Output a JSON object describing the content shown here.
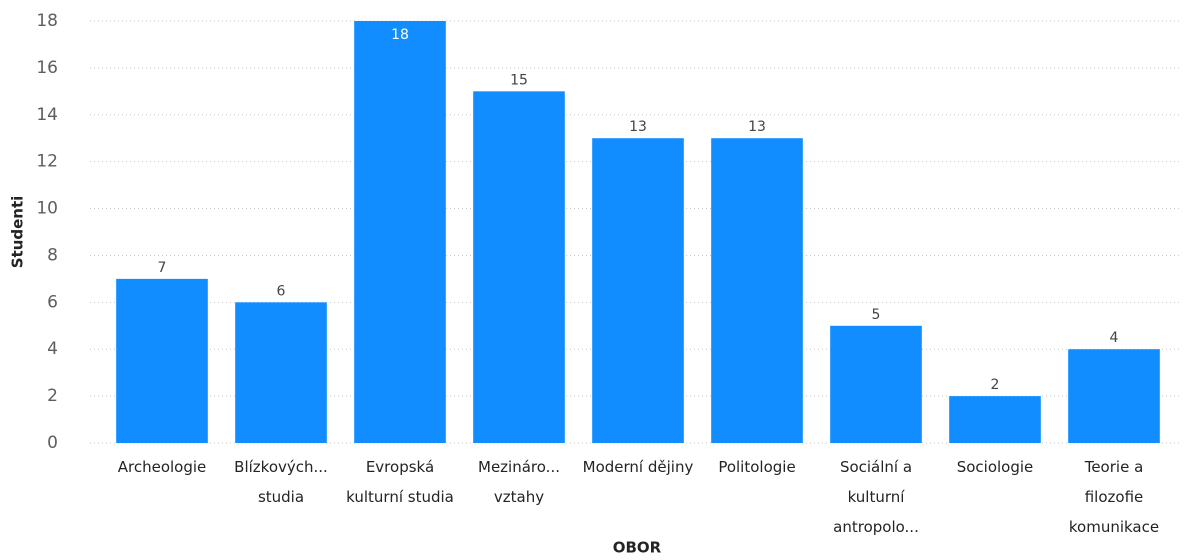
{
  "chart_data": {
    "type": "bar",
    "categories": [
      "Archeologie",
      "Blízkových... studia",
      "Evropská kulturní studia",
      "Mezináro... vztahy",
      "Moderní dějiny",
      "Politologie",
      "Sociální a kulturní antropolo...",
      "Sociologie",
      "Teorie a filozofie komunikace"
    ],
    "values": [
      7,
      6,
      18,
      15,
      13,
      13,
      5,
      2,
      4
    ],
    "color": "#118dff",
    "ylim": [
      0,
      18
    ],
    "yticks": [
      0,
      2,
      4,
      6,
      8,
      10,
      12,
      14,
      16,
      18
    ],
    "grid": true,
    "y_label": "Studenti",
    "x_label": "OBOR"
  }
}
